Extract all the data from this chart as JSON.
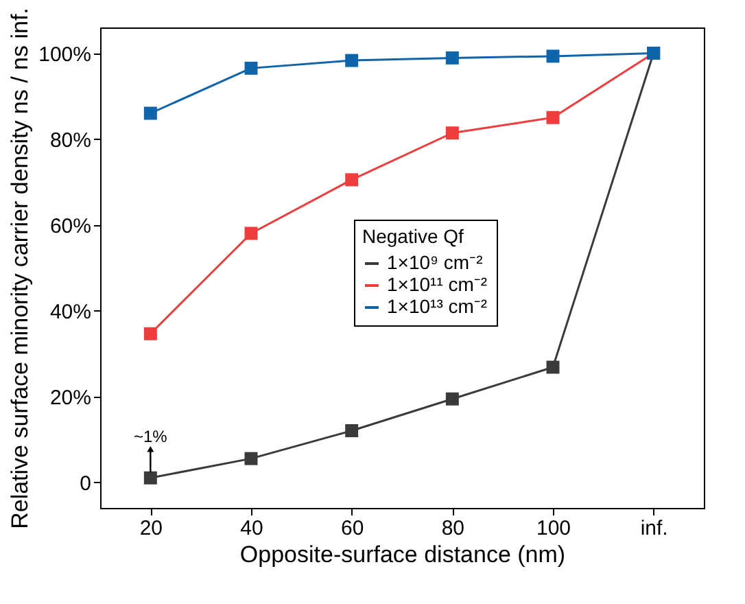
{
  "chart_data": {
    "type": "line",
    "xlabel": "Opposite-surface distance (nm)",
    "ylabel": "Relative surface minority carrier density ns / ns inf.",
    "categories": [
      "20",
      "40",
      "60",
      "80",
      "100",
      "inf."
    ],
    "series": [
      {
        "name": "1×10⁹ cm⁻²",
        "color": "#3a3a3a",
        "values": [
          1,
          5.5,
          12,
          19.4,
          26.8,
          100
        ]
      },
      {
        "name": "1×10¹¹ cm⁻²",
        "color": "#f03c3c",
        "values": [
          34.6,
          58,
          70.5,
          81.4,
          85,
          100
        ]
      },
      {
        "name": "1×10¹³ cm⁻²",
        "color": "#0f64aa",
        "values": [
          86,
          96.5,
          98.3,
          98.9,
          99.3,
          100
        ]
      }
    ],
    "legend_title": "Negative Qf",
    "legend": "center",
    "marker": "square",
    "line_style": "solid",
    "ylim": [
      -6,
      106
    ],
    "yticks": [
      0,
      {
        "value": 20,
        "label": "20%"
      },
      {
        "value": 40,
        "label": "40%"
      },
      {
        "value": 60,
        "label": "60%"
      },
      {
        "value": 80,
        "label": "80%"
      },
      {
        "value": 100,
        "label": "100%"
      }
    ],
    "grid": false,
    "annotations": [
      {
        "text": "~1%",
        "x": "20",
        "y": 1
      }
    ]
  }
}
